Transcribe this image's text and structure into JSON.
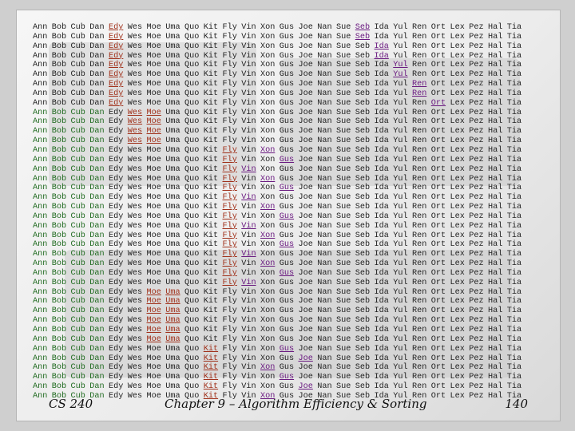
{
  "footer": {
    "course": "CS 240",
    "chapter": "Chapter 9 – Algorithm Efficiency & Sorting",
    "page": "140"
  },
  "names": [
    "Ann",
    "Bob",
    "Cub",
    "Dan",
    "Edy",
    "Wes",
    "Moe",
    "Uma",
    "Quo",
    "Kit",
    "Fly",
    "Vin",
    "Xon",
    "Gus",
    "Joe",
    "Nan",
    "Sue",
    "Seb",
    "Ida",
    "Yul",
    "Ren",
    "Ort",
    "Lex",
    "Pez",
    "Hal",
    "Tia"
  ],
  "rows": [
    [
      "Ann",
      "Bob",
      "Cub",
      "Dan",
      "Edy",
      "Wes",
      "Moe",
      "Uma",
      "Quo",
      "Kit",
      "Fly",
      "Vin",
      "Xon",
      "Gus",
      "Joe",
      "Nan",
      "Sue",
      "Seb",
      "Ida",
      "Yul",
      "Ren",
      "Ort",
      "Lex",
      "Pez",
      "Hal",
      "Tia"
    ]
  ],
  "highlight_colors": {
    "red": "#a0301a",
    "purple": "#6a1a80",
    "green": "#1f6a1f"
  }
}
